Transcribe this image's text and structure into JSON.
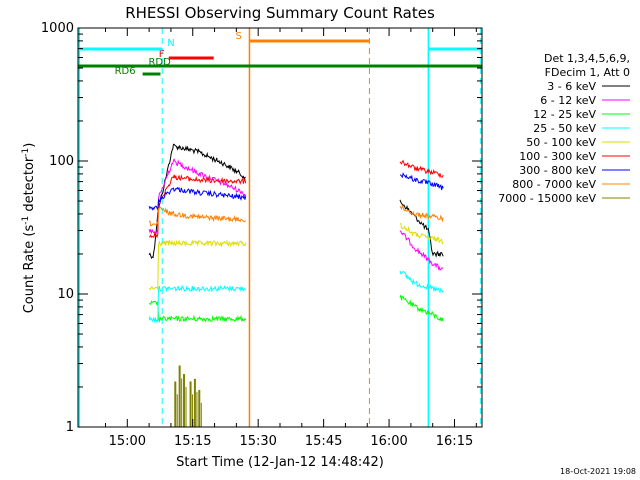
{
  "chart_data": {
    "type": "line",
    "title": "RHESSI Observing Summary Count Rates",
    "xlabel": "Start Time (12-Jan-12 14:48:42)",
    "ylabel_main": "Count Rate (s",
    "ylabel_exp1": "-1",
    "ylabel_mid": " detector",
    "ylabel_exp2": "-1",
    "ylabel_end": ")",
    "yscale": "log",
    "ylim": [
      1,
      1000
    ],
    "xlim_minutes": [
      -11.3,
      81.3
    ],
    "x_ticks": [
      {
        "m": 0,
        "label": "15:00"
      },
      {
        "m": 15,
        "label": "15:15"
      },
      {
        "m": 30,
        "label": "15:30"
      },
      {
        "m": 45,
        "label": "15:45"
      },
      {
        "m": 60,
        "label": "16:00"
      },
      {
        "m": 75,
        "label": "16:15"
      }
    ],
    "y_ticks": [
      {
        "v": 1,
        "label": "1"
      },
      {
        "v": 10,
        "label": "10"
      },
      {
        "v": 100,
        "label": "100"
      },
      {
        "v": 1000,
        "label": "1000"
      }
    ],
    "legend_header": [
      "Det 1,3,4,5,6,9,",
      "FDecim 1, Att 0"
    ],
    "series": [
      {
        "name": "3 - 6 keV",
        "color": "#000000",
        "seg1": [
          [
            5.0,
            20
          ],
          [
            6.0,
            19
          ],
          [
            7.0,
            41
          ],
          [
            10.5,
            130
          ],
          [
            16,
            118
          ],
          [
            22,
            96
          ],
          [
            26.5,
            78
          ],
          [
            27.2,
            72
          ]
        ],
        "seg2": [
          [
            62.5,
            50
          ],
          [
            66,
            38
          ],
          [
            69,
            30
          ],
          [
            70,
            20
          ],
          [
            72.5,
            20
          ]
        ]
      },
      {
        "name": "6 - 12 keV",
        "color": "#ff00ff",
        "seg1": [
          [
            5.0,
            30
          ],
          [
            7.0,
            29
          ],
          [
            7.1,
            52
          ],
          [
            10.5,
            100
          ],
          [
            16,
            82
          ],
          [
            22,
            68
          ],
          [
            26.5,
            58
          ],
          [
            27.2,
            55
          ]
        ],
        "seg2": [
          [
            62.5,
            30
          ],
          [
            66,
            22
          ],
          [
            70,
            17
          ],
          [
            72.5,
            15
          ]
        ]
      },
      {
        "name": "12 - 25 keV",
        "color": "#00ff00",
        "seg1": [
          [
            5.0,
            8.5
          ],
          [
            7.0,
            8.5
          ],
          [
            7.1,
            6.5
          ],
          [
            27.2,
            6.5
          ]
        ],
        "seg2": [
          [
            62.5,
            9.5
          ],
          [
            66,
            8
          ],
          [
            70,
            7
          ],
          [
            72.5,
            6.3
          ]
        ]
      },
      {
        "name": "25 - 50 keV",
        "color": "#00ffff",
        "seg1": [
          [
            5.0,
            6.5
          ],
          [
            7.0,
            6.4
          ],
          [
            7.1,
            11
          ],
          [
            27.2,
            11
          ]
        ],
        "seg2": [
          [
            62.5,
            15
          ],
          [
            66,
            12
          ],
          [
            70,
            11
          ],
          [
            72.5,
            10.3
          ]
        ]
      },
      {
        "name": "50 - 100 keV",
        "color": "#dddd00",
        "seg1": [
          [
            5.0,
            11
          ],
          [
            7.0,
            11
          ],
          [
            7.1,
            24
          ],
          [
            27.2,
            24
          ]
        ],
        "seg2": [
          [
            62.5,
            33
          ],
          [
            66,
            28
          ],
          [
            70,
            26
          ],
          [
            72.5,
            25
          ]
        ]
      },
      {
        "name": "100 - 300 keV",
        "color": "#ff0000",
        "seg1": [
          [
            5.0,
            28
          ],
          [
            7.0,
            27
          ],
          [
            7.1,
            48
          ],
          [
            10.5,
            76
          ],
          [
            16,
            72
          ],
          [
            27.2,
            70
          ]
        ],
        "seg2": [
          [
            62.5,
            100
          ],
          [
            66,
            88
          ],
          [
            70,
            82
          ],
          [
            72.5,
            78
          ]
        ]
      },
      {
        "name": "300 - 800 keV",
        "color": "#0000ff",
        "seg1": [
          [
            5.0,
            45
          ],
          [
            7.0,
            44
          ],
          [
            7.1,
            50
          ],
          [
            10.5,
            62
          ],
          [
            16,
            58
          ],
          [
            27.2,
            53
          ]
        ],
        "seg2": [
          [
            62.5,
            80
          ],
          [
            66,
            72
          ],
          [
            70,
            67
          ],
          [
            72.5,
            62
          ]
        ]
      },
      {
        "name": "800 - 7000 keV",
        "color": "#ff8000",
        "seg1": [
          [
            5.0,
            34
          ],
          [
            7.0,
            33
          ],
          [
            7.1,
            44
          ],
          [
            10.5,
            40
          ],
          [
            16,
            38
          ],
          [
            27.2,
            36
          ]
        ],
        "seg2": [
          [
            62.5,
            45
          ],
          [
            66,
            40
          ],
          [
            70,
            38
          ],
          [
            72.5,
            37
          ]
        ]
      },
      {
        "name": "7000 - 15000 keV",
        "color": "#808000",
        "bursts": [
          [
            11.0,
            2.2
          ],
          [
            12.0,
            2.9
          ],
          [
            13.0,
            2.5
          ],
          [
            14.5,
            2.2
          ],
          [
            15.5,
            2.3
          ],
          [
            16.5,
            1.9
          ]
        ]
      }
    ],
    "flag_bars": [
      {
        "label": "RD6",
        "color": "#008000",
        "intervals": [
          [
            3.5,
            7.6
          ]
        ],
        "level": 0
      },
      {
        "label": "RDD",
        "color": "#008000",
        "intervals": [
          [
            -11.3,
            81.3
          ]
        ],
        "level": 1
      },
      {
        "label": "F",
        "color": "#ff0000",
        "intervals": [
          [
            9.5,
            19.8
          ]
        ],
        "level": 2
      },
      {
        "label": "N",
        "color": "#00ffff",
        "intervals": [
          [
            -11.3,
            8.0
          ],
          [
            69.0,
            81.3
          ]
        ],
        "level": 3
      },
      {
        "label": "S",
        "color": "#ff8000",
        "intervals": [
          [
            28.0,
            55.5
          ]
        ],
        "level": 4
      }
    ],
    "vlines_solid": [
      {
        "m": -11.0,
        "color": "#00ffff"
      },
      {
        "m": 28.0,
        "color": "#ff8000"
      },
      {
        "m": 69.0,
        "color": "#00ffff"
      }
    ],
    "vlines_dashed": [
      {
        "m": 8.0,
        "color": "#00ffff"
      },
      {
        "m": 55.5,
        "color": "#ff8000"
      },
      {
        "m": 81.0,
        "color": "#00ffff"
      }
    ],
    "footer_date": "18-Oct-2021 19:08",
    "grid": false,
    "legend_position": "right"
  }
}
